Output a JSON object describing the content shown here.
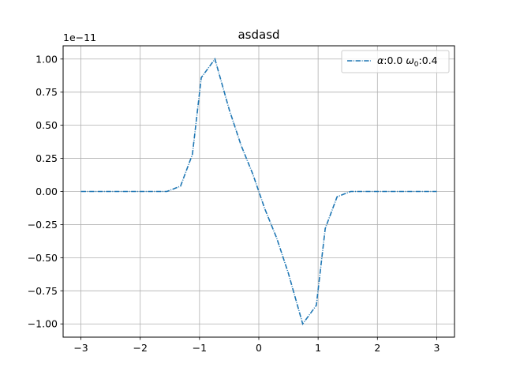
{
  "chart_data": {
    "type": "line",
    "title": "asdasd",
    "xlabel": "",
    "ylabel": "",
    "y_offset_text": "1e−11",
    "xlim": [
      -3.3,
      3.3
    ],
    "ylim": [
      -1.1,
      1.1
    ],
    "grid": true,
    "legend_position": "top-right",
    "x_ticks": [
      -3,
      -2,
      -1,
      0,
      1,
      2,
      3
    ],
    "x_tick_labels": [
      "−3",
      "−2",
      "−1",
      "0",
      "1",
      "2",
      "3"
    ],
    "y_ticks": [
      -1.0,
      -0.75,
      -0.5,
      -0.25,
      0.0,
      0.25,
      0.5,
      0.75,
      1.0
    ],
    "y_tick_labels": [
      "−1.00",
      "−0.75",
      "−0.50",
      "−0.25",
      "0.00",
      "0.25",
      "0.50",
      "0.75",
      "1.00"
    ],
    "series": [
      {
        "name": "α:0.0 ω₀:0.4",
        "color": "#1f77b4",
        "line_style": "dash-dot",
        "x": [
          -3.0,
          -2.5,
          -2.0,
          -1.55,
          -1.32,
          -1.12,
          -0.97,
          -0.74,
          -0.5,
          -0.3,
          -0.1,
          0.0,
          0.1,
          0.3,
          0.5,
          0.74,
          0.97,
          1.12,
          1.32,
          1.55,
          2.0,
          2.5,
          3.0
        ],
        "y": [
          0.0,
          0.0,
          0.0,
          0.0,
          0.04,
          0.28,
          0.86,
          1.0,
          0.62,
          0.35,
          0.13,
          0.0,
          -0.13,
          -0.35,
          -0.62,
          -1.0,
          -0.86,
          -0.28,
          -0.04,
          0.0,
          0.0,
          0.0,
          0.0
        ]
      }
    ]
  },
  "legend": {
    "alpha_symbol": "α",
    "alpha_value": ":0.0 ",
    "omega_symbol": "ω",
    "omega_subscript": "0",
    "omega_value": ":0.4"
  },
  "colors": {
    "series": "#1f77b4",
    "grid": "#b0b0b0",
    "axes": "#000000"
  }
}
